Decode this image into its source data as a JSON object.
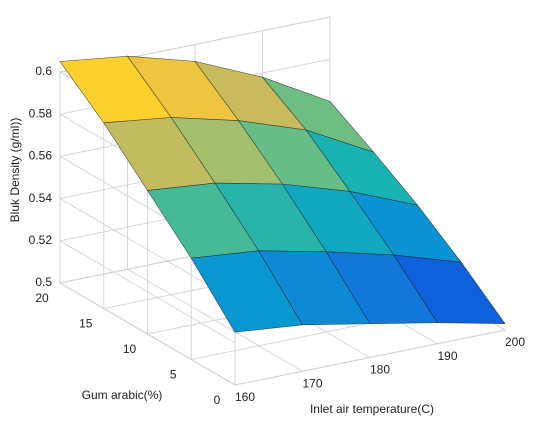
{
  "chart_data": {
    "type": "surface",
    "xlabel": "Inlet air temperature(C)",
    "ylabel": "Gum arabic(%)",
    "zlabel": "Bluk Density (g/ml))",
    "x": [
      160,
      170,
      180,
      190,
      200
    ],
    "y": [
      0,
      5,
      10,
      15,
      20
    ],
    "z": [
      [
        0.525,
        0.522,
        0.516,
        0.51,
        0.503
      ],
      [
        0.548,
        0.545,
        0.538,
        0.53,
        0.52
      ],
      [
        0.568,
        0.565,
        0.558,
        0.548,
        0.535
      ],
      [
        0.588,
        0.584,
        0.576,
        0.565,
        0.548
      ],
      [
        0.605,
        0.601,
        0.592,
        0.578,
        0.56
      ]
    ],
    "xlim": [
      160,
      200
    ],
    "ylim": [
      0,
      20
    ],
    "zlim": [
      0.5,
      0.6
    ],
    "xticks": [
      160,
      170,
      180,
      190,
      200
    ],
    "yticks": [
      0,
      5,
      10,
      15,
      20
    ],
    "zticks": [
      0.5,
      0.52,
      0.54,
      0.56,
      0.58,
      0.6
    ],
    "colormap": "parula",
    "grid": true
  }
}
